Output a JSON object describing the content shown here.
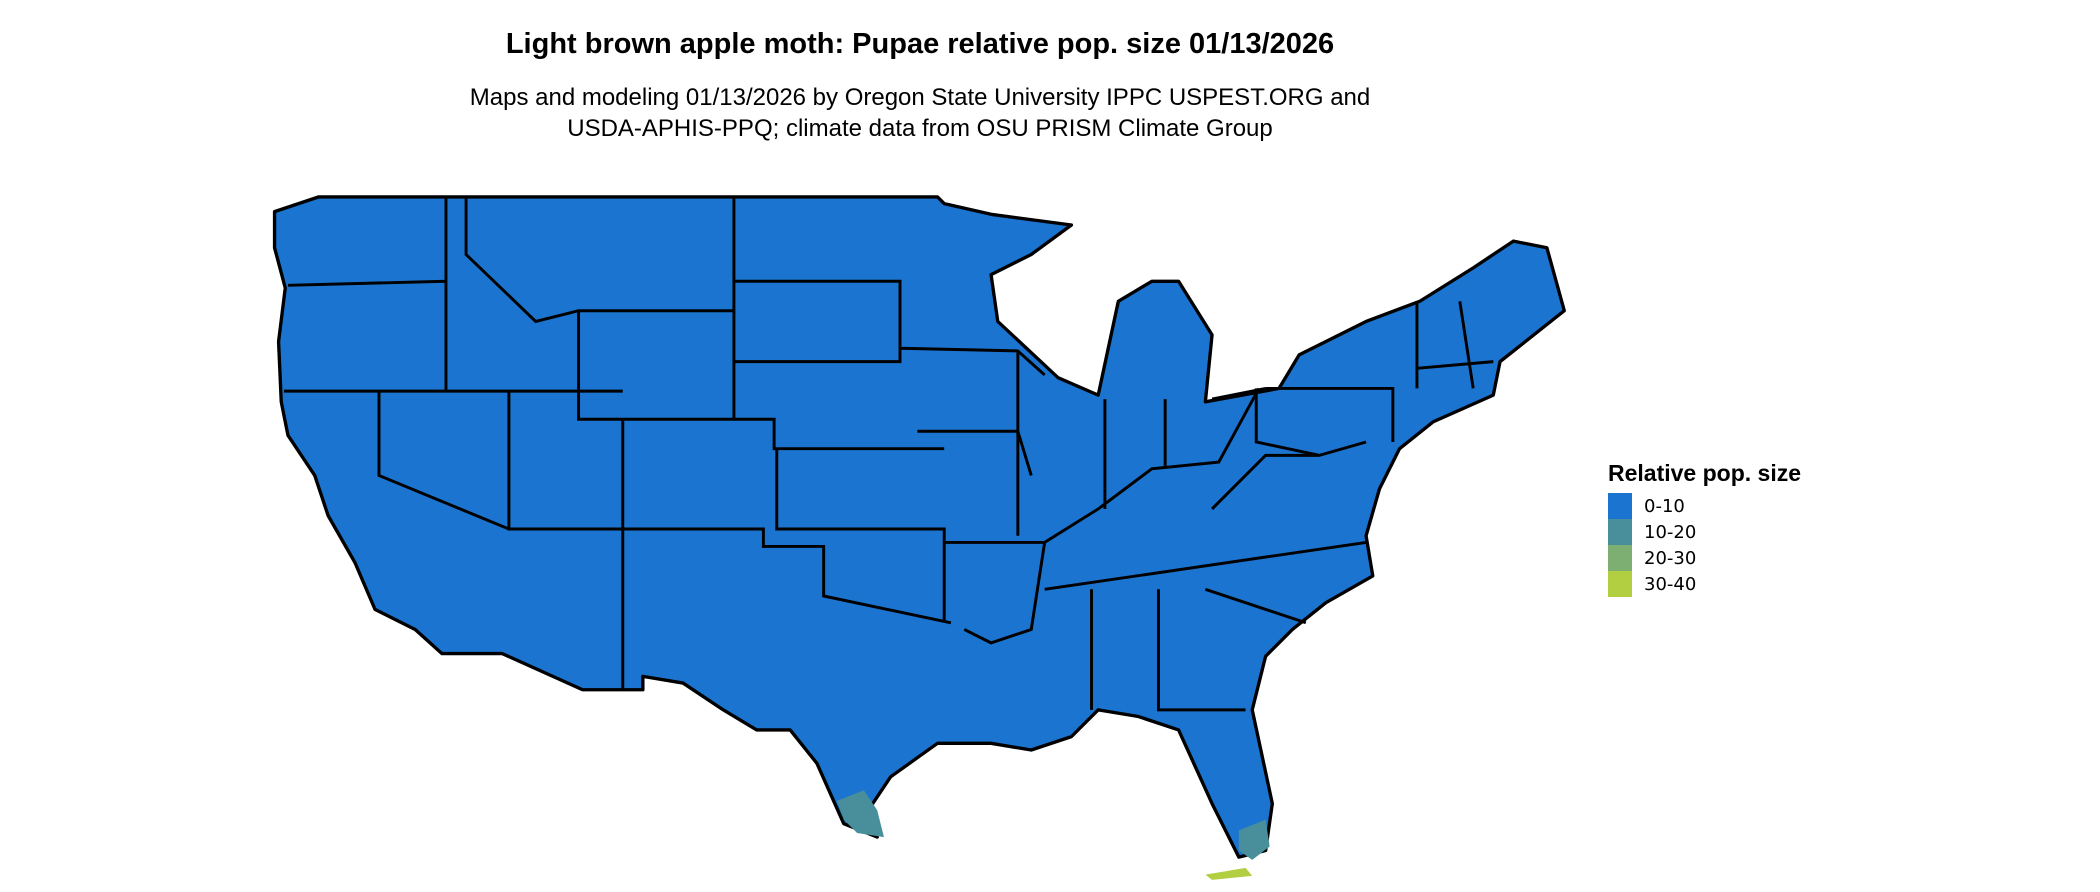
{
  "title": "Light brown apple moth: Pupae relative pop. size 01/13/2026",
  "subtitle_lines": [
    "Maps and modeling 01/13/2026 by Oregon State University IPPC USPEST.ORG and",
    "USDA-APHIS-PPQ; climate data from OSU PRISM Climate Group"
  ],
  "legend": {
    "title": "Relative pop. size",
    "items": [
      {
        "label": "0-10",
        "color": "#1B75D0"
      },
      {
        "label": "10-20",
        "color": "#498F9B"
      },
      {
        "label": "20-30",
        "color": "#7EAF72"
      },
      {
        "label": "30-40",
        "color": "#B2CF42"
      }
    ]
  },
  "map": {
    "region": "Contiguous United States",
    "dominant_class": "0-10",
    "border_color": "#000000"
  }
}
